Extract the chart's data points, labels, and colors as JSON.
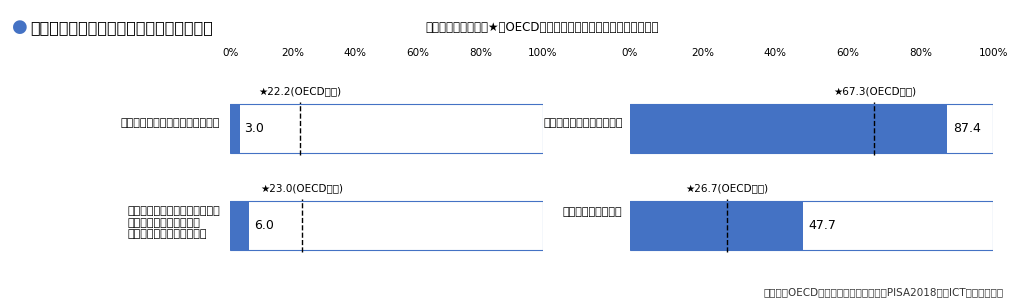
{
  "title": "学校外での平日のデジタル機器の利用状況",
  "subtitle": "（青色帯は日本の、★はOECD平均の「毎日」「ほぼ毎日」の合計）",
  "citation": "（出典：OECD生徒の学習到達度調査（PISA2018）「ICT活用調査」）",
  "left_bars": [
    {
      "label": "コンピュータを使って宿題をする",
      "value": 3.0,
      "oecd": 22.2,
      "oecd_str": "22.2"
    },
    {
      "label": "学校の勉強のために、インター\nネット上のサイトを見る\n（例：作文や発表の準備）",
      "value": 6.0,
      "oecd": 23.0,
      "oecd_str": "23.0"
    }
  ],
  "right_bars": [
    {
      "label": "ネット上でチャットをする",
      "value": 87.4,
      "oecd": 67.3,
      "oecd_str": "67.3"
    },
    {
      "label": "１人用ゲームで遊ぶ",
      "value": 47.7,
      "oecd": 26.7,
      "oecd_str": "26.7"
    }
  ],
  "bar_color": "#4472C4",
  "bar_edge_color": "#4472C4",
  "background_color": "#ffffff",
  "title_bullet_color": "#4472C4",
  "bar_height": 0.5,
  "title_fontsize": 11.5,
  "subtitle_fontsize": 8.5,
  "label_fontsize": 8,
  "value_fontsize": 9,
  "oecd_fontsize": 7.5,
  "axis_tick_fontsize": 7.5,
  "citation_fontsize": 7.5
}
